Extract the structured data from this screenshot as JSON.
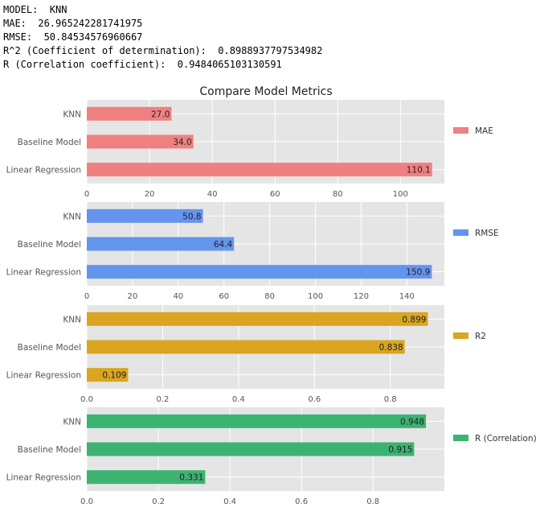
{
  "console": {
    "model_line": "MODEL:  KNN",
    "mae_line": "MAE:  26.965242281741975",
    "rmse_line": "RMSE:  50.84534576960667",
    "r2_line": "R^2 (Coefficient of determination):  0.8988937797534982",
    "r_line": "R (Correlation coefficient):  0.9484065103130591"
  },
  "figure_title": "Compare Model Metrics",
  "chart_data": [
    {
      "type": "bar",
      "orientation": "horizontal",
      "categories": [
        "KNN",
        "Baseline Model",
        "Linear Regression"
      ],
      "series": [
        {
          "name": "MAE",
          "values": [
            27.0,
            34.0,
            110.1
          ],
          "color": "#f08080"
        }
      ],
      "value_labels": [
        "27.0",
        "34.0",
        "110.1"
      ],
      "xlim": [
        0,
        114
      ],
      "xticks": [
        0,
        20,
        40,
        60,
        80,
        100
      ],
      "xtick_labels": [
        "0",
        "20",
        "40",
        "60",
        "80",
        "100"
      ],
      "legend": "right",
      "grid": true
    },
    {
      "type": "bar",
      "orientation": "horizontal",
      "categories": [
        "KNN",
        "Baseline Model",
        "Linear Regression"
      ],
      "series": [
        {
          "name": "RMSE",
          "values": [
            50.8,
            64.4,
            150.9
          ],
          "color": "#6495ed"
        }
      ],
      "value_labels": [
        "50.8",
        "64.4",
        "150.9"
      ],
      "xlim": [
        0,
        156.4
      ],
      "xticks": [
        0,
        20,
        40,
        60,
        80,
        100,
        120,
        140
      ],
      "xtick_labels": [
        "0",
        "20",
        "40",
        "60",
        "80",
        "100",
        "120",
        "140"
      ],
      "legend": "right",
      "grid": true
    },
    {
      "type": "bar",
      "orientation": "horizontal",
      "categories": [
        "KNN",
        "Baseline Model",
        "Linear Regression"
      ],
      "series": [
        {
          "name": "R2",
          "values": [
            0.899,
            0.838,
            0.109
          ],
          "color": "#daa520"
        }
      ],
      "value_labels": [
        "0.899",
        "0.838",
        "0.109"
      ],
      "xlim": [
        0,
        0.9425
      ],
      "xticks": [
        0,
        0.2,
        0.4,
        0.6,
        0.8
      ],
      "xtick_labels": [
        "0.0",
        "0.2",
        "0.4",
        "0.6",
        "0.8"
      ],
      "legend": "right",
      "grid": true
    },
    {
      "type": "bar",
      "orientation": "horizontal",
      "categories": [
        "KNN",
        "Baseline Model",
        "Linear Regression"
      ],
      "series": [
        {
          "name": "R (Correlation)",
          "values": [
            0.948,
            0.915,
            0.331
          ],
          "color": "#3cb371"
        }
      ],
      "value_labels": [
        "0.948",
        "0.915",
        "0.331"
      ],
      "xlim": [
        0,
        0.9995
      ],
      "xticks": [
        0,
        0.2,
        0.4,
        0.6,
        0.8
      ],
      "xtick_labels": [
        "0.0",
        "0.2",
        "0.4",
        "0.6",
        "0.8"
      ],
      "legend": "right",
      "grid": true
    }
  ]
}
